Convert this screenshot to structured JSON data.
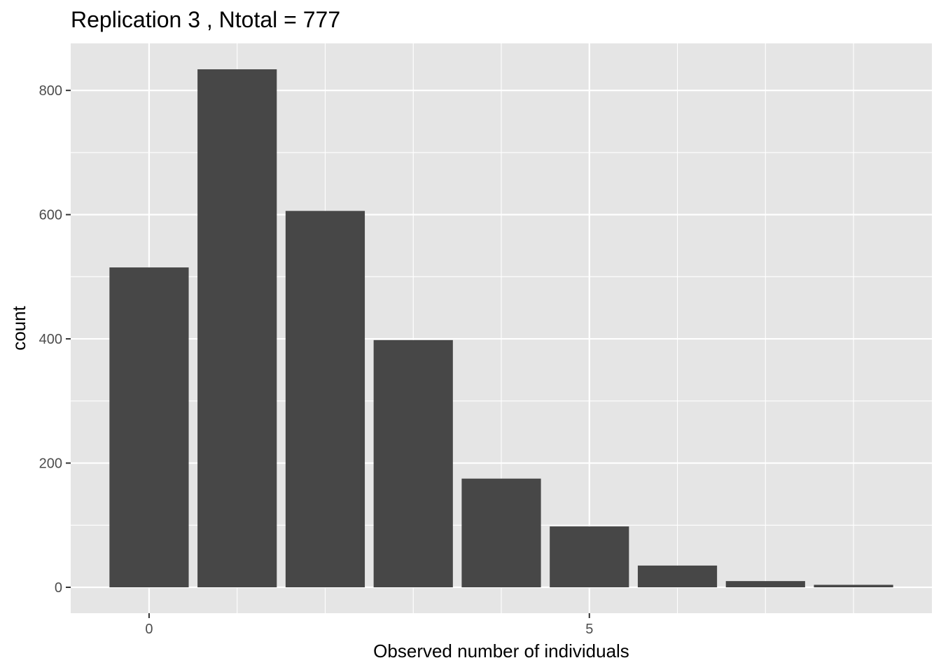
{
  "chart_data": {
    "type": "bar",
    "title": "Replication 3 , Ntotal =  777",
    "xlabel": "Observed number of individuals",
    "ylabel": "count",
    "x": [
      0,
      1,
      2,
      3,
      4,
      5,
      6,
      7,
      8
    ],
    "values": [
      515,
      834,
      606,
      398,
      175,
      98,
      35,
      10,
      4
    ],
    "xlim": [
      -0.89,
      8.89
    ],
    "ylim": [
      -41.7,
      875.7
    ],
    "x_ticks": [
      0,
      5
    ],
    "x_tick_labels": [
      "0",
      "5"
    ],
    "y_ticks": [
      0,
      200,
      400,
      600,
      800
    ],
    "y_tick_labels": [
      "0",
      "200",
      "400",
      "600",
      "800"
    ],
    "grid": true,
    "colors": {
      "panel": "#e5e5e5",
      "grid": "#ffffff",
      "bar": "#474747",
      "tick_text": "#4d4d4d",
      "tick_mark": "#333333"
    }
  }
}
